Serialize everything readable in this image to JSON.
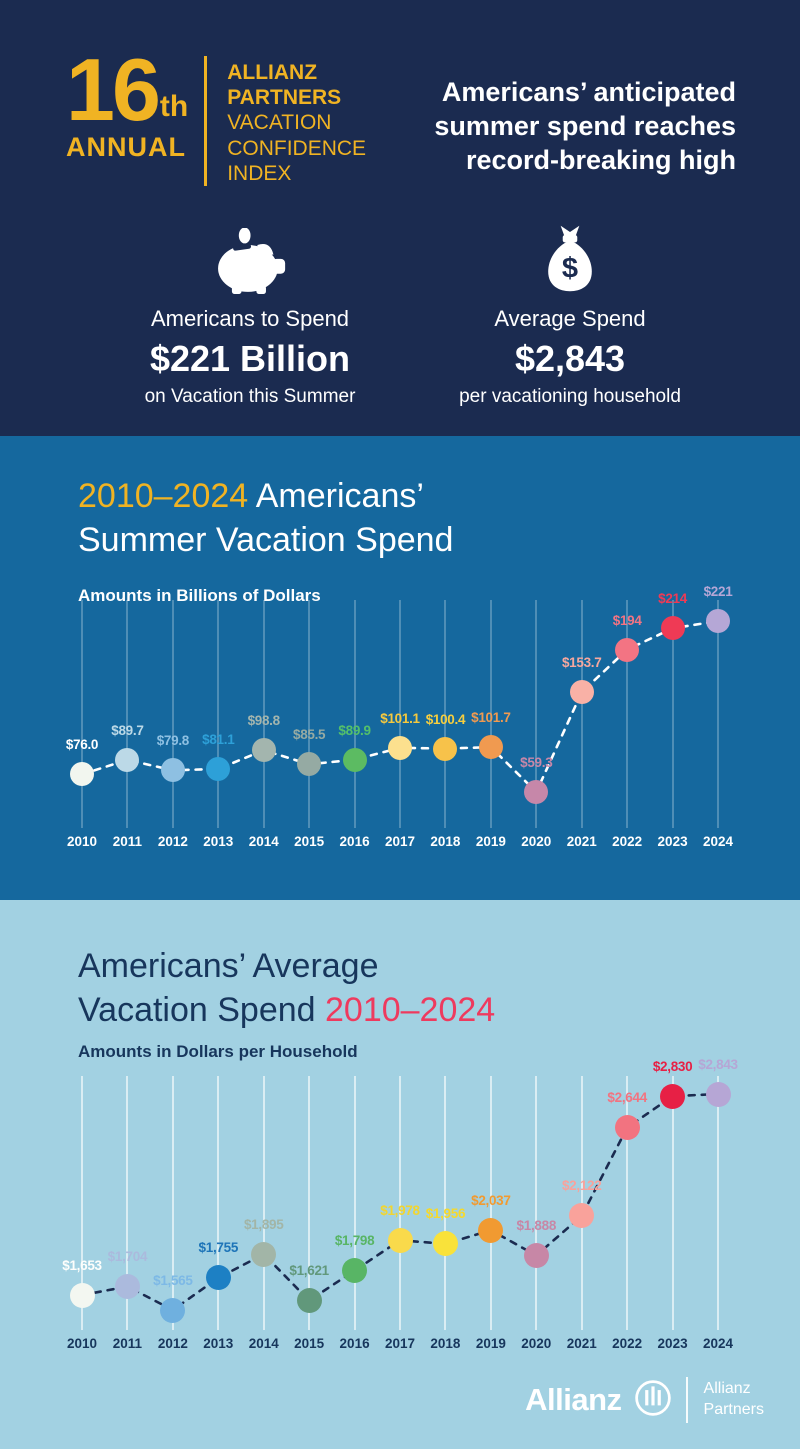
{
  "header": {
    "annual_number": "16",
    "annual_suffix": "th",
    "annual_word": "ANNUAL",
    "brand_bold_lines": [
      "ALLIANZ",
      "PARTNERS"
    ],
    "brand_light_lines": [
      "VACATION",
      "CONFIDENCE",
      "INDEX"
    ],
    "headline_lines": [
      "Americans’ anticipated",
      "summer spend reaches",
      "record-breaking high"
    ],
    "stats": [
      {
        "icon": "piggy-bank-icon",
        "label": "Americans to Spend",
        "value": "$221 Billion",
        "sublabel": "on Vacation this Summer"
      },
      {
        "icon": "money-bag-icon",
        "label": "Average Spend",
        "value": "$2,843",
        "sublabel": "per vacationing household"
      }
    ]
  },
  "colors": {
    "navy_bg": "#1b2b50",
    "blue_bg": "#15689e",
    "light_blue_bg": "#a2d1e2",
    "gold_accent": "#f0b323",
    "pink_accent": "#ee3a5e",
    "dark_title": "#17365c",
    "white": "#ffffff"
  },
  "chart_data": [
    {
      "type": "line",
      "title_highlight": "2010–2024",
      "title_line1_rest": " Americans’",
      "title_line2": "Summer Vacation Spend",
      "subtitle": "Amounts in Billions of Dollars",
      "xlabel": "",
      "ylabel": "Billions of Dollars",
      "ylim": [
        59.3,
        221
      ],
      "grid": "vertical",
      "legend": "none",
      "line_style": "dashed",
      "line_color": "#ffffff",
      "grid_color": "rgba(255,255,255,0.25)",
      "axis_label_color": "#ffffff",
      "categories": [
        "2010",
        "2011",
        "2012",
        "2013",
        "2014",
        "2015",
        "2016",
        "2017",
        "2018",
        "2019",
        "2020",
        "2021",
        "2022",
        "2023",
        "2024"
      ],
      "values": [
        76.0,
        89.7,
        79.8,
        81.1,
        98.8,
        85.5,
        89.9,
        101.1,
        100.4,
        101.7,
        59.3,
        153.7,
        194,
        214,
        221
      ],
      "labels": [
        "$76.0",
        "$89.7",
        "$79.8",
        "$81.1",
        "$98.8",
        "$85.5",
        "$89.9",
        "$101.1",
        "$100.4",
        "$101.7",
        "$59.3",
        "$153.7",
        "$194",
        "$214",
        "$221"
      ],
      "dot_colors": [
        "#f2f6ef",
        "#bcd9e7",
        "#8ec0e2",
        "#2da0d8",
        "#a3b5ae",
        "#95aaa3",
        "#5cbb62",
        "#fce08e",
        "#f7c24a",
        "#f09a50",
        "#c687a9",
        "#f9b1a6",
        "#f37483",
        "#ef3a55",
        "#b5a7d6"
      ],
      "label_colors": [
        "#ffffff",
        "#bcd9e7",
        "#8ec0e2",
        "#2da0d8",
        "#a3b5ae",
        "#95aaa3",
        "#54c06a",
        "#f5c93e",
        "#f6ce3f",
        "#f09a50",
        "#c687a9",
        "#f6a79e",
        "#f37483",
        "#ef3a55",
        "#b5a7d6"
      ]
    },
    {
      "type": "line",
      "title_line1": "Americans’ Average",
      "title_line2_rest": "Vacation Spend ",
      "title_highlight": "2010–2024",
      "subtitle": "Amounts in Dollars per Household",
      "xlabel": "",
      "ylabel": "Dollars per Household",
      "ylim": [
        1565,
        2843
      ],
      "grid": "vertical",
      "legend": "none",
      "line_style": "dashed",
      "line_color": "#1b2b50",
      "grid_color": "rgba(255,255,255,0.6)",
      "axis_label_color": "#17365c",
      "categories": [
        "2010",
        "2011",
        "2012",
        "2013",
        "2014",
        "2015",
        "2016",
        "2017",
        "2018",
        "2019",
        "2020",
        "2021",
        "2022",
        "2023",
        "2024"
      ],
      "values": [
        1653,
        1704,
        1565,
        1755,
        1895,
        1621,
        1798,
        1978,
        1956,
        2037,
        1888,
        2122,
        2644,
        2830,
        2843
      ],
      "labels": [
        "$1,653",
        "$1,704",
        "$1,565",
        "$1,755",
        "$1,895",
        "$1,621",
        "$1,798",
        "$1,978",
        "$1,956",
        "$2,037",
        "$1,888",
        "$2,122",
        "$2,644",
        "$2,830",
        "$2,843"
      ],
      "dot_colors": [
        "#f3f7f1",
        "#abbadd",
        "#6fb0df",
        "#1d80c4",
        "#a2b5a7",
        "#61987b",
        "#58b565",
        "#f9da4b",
        "#f9e23a",
        "#f19a31",
        "#c787a6",
        "#f9a29b",
        "#f27380",
        "#e72045",
        "#b6a6d5"
      ],
      "label_colors": [
        "#fdfefc",
        "#abbadd",
        "#7db9e6",
        "#1d74b8",
        "#a2b5a7",
        "#61987b",
        "#58b565",
        "#f2d52f",
        "#f5d92e",
        "#f19a31",
        "#c787a6",
        "#f9a29b",
        "#f27380",
        "#e72045",
        "#b6a6d5"
      ]
    }
  ],
  "footer": {
    "wordmark": "Allianz",
    "logo": "allianz-logo-icon",
    "partner_line1": "Allianz",
    "partner_line2": "Partners"
  }
}
